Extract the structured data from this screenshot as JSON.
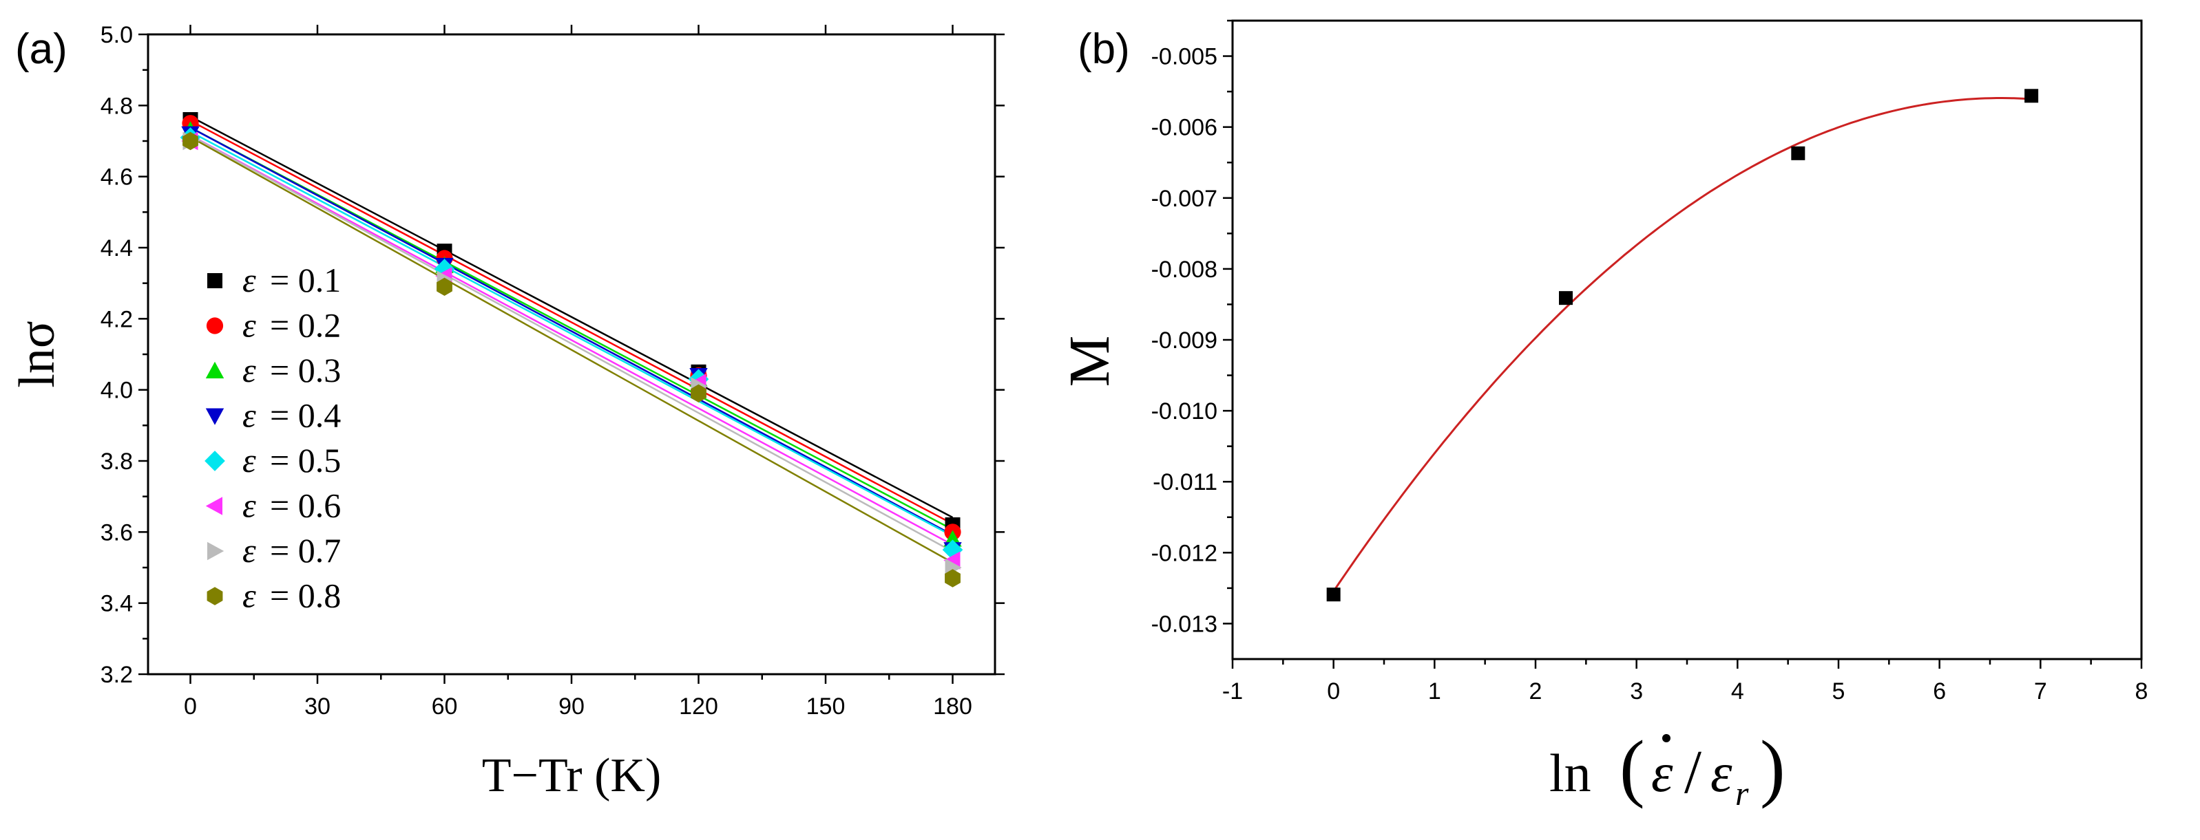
{
  "chart_data": [
    {
      "type": "scatter",
      "panel_label": "(a)",
      "xlabel": "T−Tr (K)",
      "ylabel": "lnσ",
      "xlim": [
        -10,
        190
      ],
      "ylim": [
        3.2,
        5.0
      ],
      "xticks": [
        0,
        30,
        60,
        90,
        120,
        150,
        180
      ],
      "yticks": [
        3.2,
        3.4,
        3.6,
        3.8,
        4.0,
        4.2,
        4.4,
        4.6,
        4.8,
        5.0
      ],
      "x": [
        0,
        60,
        120,
        180
      ],
      "fit": "linear",
      "legend_position": "left",
      "series": [
        {
          "name": "ε = 0.1",
          "symbol": "ε",
          "value": "= 0.1",
          "marker": "square",
          "color": "#000000",
          "values": [
            4.76,
            4.39,
            4.05,
            3.62
          ]
        },
        {
          "name": "ε = 0.2",
          "symbol": "ε",
          "value": "= 0.2",
          "marker": "circle",
          "color": "#ff0000",
          "values": [
            4.75,
            4.37,
            4.04,
            3.6
          ]
        },
        {
          "name": "ε = 0.3",
          "symbol": "ε",
          "value": "= 0.3",
          "marker": "triangle-up",
          "color": "#00dd00",
          "values": [
            4.73,
            4.35,
            4.03,
            3.58
          ]
        },
        {
          "name": "ε = 0.4",
          "symbol": "ε",
          "value": "= 0.4",
          "marker": "triangle-down",
          "color": "#0000cc",
          "values": [
            4.72,
            4.35,
            4.04,
            3.55
          ]
        },
        {
          "name": "ε = 0.5",
          "symbol": "ε",
          "value": "= 0.5",
          "marker": "diamond",
          "color": "#00e5ee",
          "values": [
            4.71,
            4.34,
            4.03,
            3.55
          ]
        },
        {
          "name": "ε = 0.6",
          "symbol": "ε",
          "value": "= 0.6",
          "marker": "triangle-left",
          "color": "#ff33ff",
          "values": [
            4.7,
            4.32,
            4.02,
            3.52
          ]
        },
        {
          "name": "ε = 0.7",
          "symbol": "ε",
          "value": "= 0.7",
          "marker": "triangle-right",
          "color": "#bbbbbb",
          "values": [
            4.7,
            4.31,
            4.01,
            3.5
          ]
        },
        {
          "name": "ε = 0.8",
          "symbol": "ε",
          "value": "= 0.8",
          "marker": "hexagon",
          "color": "#808000",
          "values": [
            4.7,
            4.29,
            3.99,
            3.47
          ]
        }
      ]
    },
    {
      "type": "scatter",
      "panel_label": "(b)",
      "xlabel_text": "ln",
      "xlabel": "ln(ε̇/εr)",
      "ylabel": "M",
      "xlim": [
        -1,
        8
      ],
      "ylim": [
        -0.0135,
        -0.0045
      ],
      "xticks": [
        -1,
        0,
        1,
        2,
        3,
        4,
        5,
        6,
        7,
        8
      ],
      "yticks": [
        -0.013,
        -0.012,
        -0.011,
        -0.01,
        -0.009,
        -0.008,
        -0.007,
        -0.006,
        -0.005
      ],
      "ytick_labels": [
        "-0.013",
        "-0.012",
        "-0.011",
        "-0.010",
        "-0.009",
        "-0.008",
        "-0.007",
        "-0.006",
        "-0.005"
      ],
      "fit": "quadratic",
      "fit_color": "#cc2222",
      "fit_range": [
        0,
        6.91
      ],
      "series": [
        {
          "name": "M",
          "marker": "square",
          "color": "#000000",
          "x": [
            0,
            2.3,
            4.6,
            6.91
          ],
          "values": [
            -0.01259,
            -0.00841,
            -0.00637,
            -0.00556
          ]
        }
      ]
    }
  ]
}
